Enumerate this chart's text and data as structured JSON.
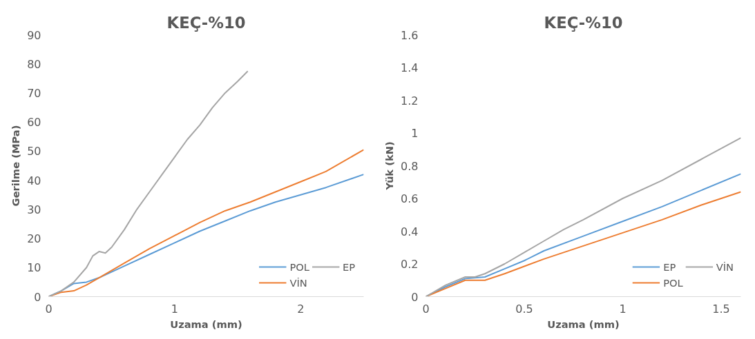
{
  "chart_data": [
    {
      "type": "line",
      "title": "KEÇ-%10",
      "xlabel": "Uzama (mm)",
      "ylabel": "Gerilme (MPa)",
      "xlim": [
        0,
        2.5
      ],
      "ylim": [
        0,
        90
      ],
      "xticks": [
        0,
        1,
        2
      ],
      "yticks": [
        0,
        10,
        20,
        30,
        40,
        50,
        60,
        70,
        80,
        90
      ],
      "grid": false,
      "legend": "bottom right",
      "marker": "none",
      "line_style": "solid",
      "series": [
        {
          "name": "POL",
          "color": "#5b9bd5",
          "x": [
            0,
            0.1,
            0.2,
            0.3,
            0.4,
            0.6,
            0.8,
            1.0,
            1.2,
            1.4,
            1.6,
            1.8,
            2.0,
            2.2,
            2.5
          ],
          "values": [
            0,
            2,
            4.5,
            5,
            6.5,
            10.5,
            14.5,
            18.5,
            22.5,
            26,
            29.5,
            32.5,
            35,
            37.5,
            42
          ]
        },
        {
          "name": "VİN",
          "color": "#ed7d31",
          "x": [
            0,
            0.1,
            0.2,
            0.3,
            0.4,
            0.6,
            0.8,
            1.0,
            1.2,
            1.4,
            1.6,
            1.8,
            2.0,
            2.2,
            2.5
          ],
          "values": [
            0,
            1.5,
            2,
            4,
            6.5,
            11.5,
            16.5,
            21,
            25.5,
            29.5,
            32.5,
            36,
            39.5,
            43,
            50.5
          ]
        },
        {
          "name": "EP",
          "color": "#a5a5a5",
          "x": [
            0,
            0.1,
            0.2,
            0.3,
            0.35,
            0.4,
            0.45,
            0.5,
            0.6,
            0.7,
            0.8,
            0.9,
            1.0,
            1.1,
            1.2,
            1.3,
            1.4,
            1.5,
            1.58
          ],
          "values": [
            0,
            2,
            5,
            10,
            14,
            15.5,
            15,
            17,
            23,
            30,
            36,
            42,
            48,
            54,
            59,
            65,
            70,
            74,
            77.5
          ]
        }
      ]
    },
    {
      "type": "line",
      "title": "KEÇ-%10",
      "xlabel": "Uzama (mm)",
      "ylabel": "Yük (kN)",
      "xlim": [
        0,
        1.6
      ],
      "ylim": [
        0,
        1.6
      ],
      "xticks": [
        0,
        0.5,
        1,
        1.5
      ],
      "yticks": [
        0,
        0.2,
        0.4,
        0.6,
        0.8,
        1,
        1.2,
        1.4,
        1.6
      ],
      "grid": false,
      "legend": "bottom right",
      "marker": "none",
      "line_style": "solid",
      "series": [
        {
          "name": "EP",
          "color": "#5b9bd5",
          "x": [
            0,
            0.1,
            0.2,
            0.3,
            0.4,
            0.5,
            0.6,
            0.8,
            1.0,
            1.2,
            1.4,
            1.6
          ],
          "values": [
            0,
            0.06,
            0.11,
            0.12,
            0.17,
            0.22,
            0.28,
            0.37,
            0.46,
            0.55,
            0.65,
            0.75
          ]
        },
        {
          "name": "POL",
          "color": "#ed7d31",
          "x": [
            0,
            0.1,
            0.2,
            0.3,
            0.4,
            0.6,
            0.8,
            1.0,
            1.2,
            1.4,
            1.6
          ],
          "values": [
            0,
            0.05,
            0.1,
            0.1,
            0.14,
            0.23,
            0.31,
            0.39,
            0.47,
            0.56,
            0.64
          ]
        },
        {
          "name": "VİN",
          "color": "#a5a5a5",
          "x": [
            0,
            0.1,
            0.2,
            0.25,
            0.3,
            0.4,
            0.5,
            0.6,
            0.7,
            0.8,
            1.0,
            1.2,
            1.4,
            1.6
          ],
          "values": [
            0,
            0.07,
            0.12,
            0.12,
            0.14,
            0.2,
            0.27,
            0.34,
            0.41,
            0.47,
            0.6,
            0.71,
            0.84,
            0.97
          ]
        }
      ]
    }
  ]
}
